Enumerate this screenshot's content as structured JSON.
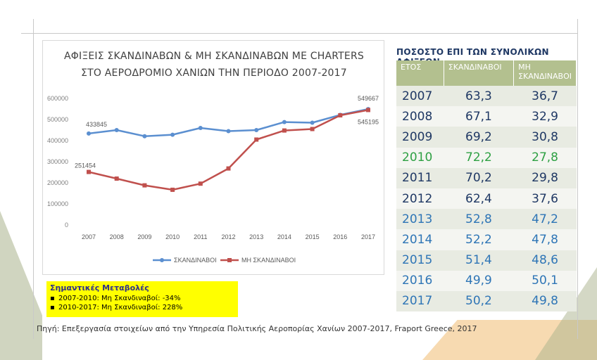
{
  "chart_data": {
    "type": "line",
    "title_line1": "ΑΦΙΞΕΙΣ ΣΚΑΝΔΙΝΑΒΩΝ & ΜΗ ΣΚΑΝΔΙΝΑΒΩΝ ΜΕ CHARTERS",
    "title_line2": "ΣΤΟ ΑΕΡΟΔΡΟΜΙΟ ΧΑΝΙΩΝ ΤΗΝ ΠΕΡΙΟΔΟ 2007-2017",
    "x": [
      "2007",
      "2008",
      "2009",
      "2010",
      "2011",
      "2012",
      "2013",
      "2014",
      "2015",
      "2016",
      "2017"
    ],
    "ylim": [
      0,
      600000
    ],
    "yticks": [
      "0",
      "100000",
      "200000",
      "300000",
      "400000",
      "500000",
      "600000"
    ],
    "series": [
      {
        "name": "ΣΚΑΝΔΙΝΑΒΟΙ",
        "color": "#5b8fd0",
        "values": [
          433845,
          450000,
          421000,
          428000,
          460000,
          445000,
          450000,
          488000,
          485000,
          522000,
          549667
        ]
      },
      {
        "name": "ΜΗ ΣΚΑΝΔΙΝΑΒΟΙ",
        "color": "#c0504d",
        "values": [
          251454,
          220000,
          188000,
          167000,
          196000,
          268000,
          405000,
          448000,
          455000,
          520000,
          545195
        ]
      }
    ],
    "data_labels": [
      {
        "text": "433845",
        "series": 0,
        "index": 0
      },
      {
        "text": "549667",
        "series": 0,
        "index": 10
      },
      {
        "text": "251454",
        "series": 1,
        "index": 0
      },
      {
        "text": "545195",
        "series": 1,
        "index": 10
      }
    ],
    "legend_position": "bottom",
    "grid": false
  },
  "table": {
    "title": "ΠΟΣΟΣΤΟ ΕΠΙ ΤΩΝ ΣΥΝΟΛΙΚΩΝ ΑΦΙΞΕΩΝ",
    "headers": [
      "ΕΤΟΣ",
      "ΣΚΑΝΔΙΝΑΒΟΙ",
      "ΜΗ ΣΚΑΝΔΙΝΑΒΟΙ"
    ],
    "rows": [
      {
        "year": "2007",
        "sk": "63,3",
        "non": "36,7",
        "color": "#1f3864"
      },
      {
        "year": "2008",
        "sk": "67,1",
        "non": "32,9",
        "color": "#1f3864"
      },
      {
        "year": "2009",
        "sk": "69,2",
        "non": "30,8",
        "color": "#1f3864"
      },
      {
        "year": "2010",
        "sk": "72,2",
        "non": "27,8",
        "color": "#2ea043"
      },
      {
        "year": "2011",
        "sk": "70,2",
        "non": "29,8",
        "color": "#1f3864"
      },
      {
        "year": "2012",
        "sk": "62,4",
        "non": "37,6",
        "color": "#1f3864"
      },
      {
        "year": "2013",
        "sk": "52,8",
        "non": "47,2",
        "color": "#2e75b6"
      },
      {
        "year": "2014",
        "sk": "52,2",
        "non": "47,8",
        "color": "#2e75b6"
      },
      {
        "year": "2015",
        "sk": "51,4",
        "non": "48,6",
        "color": "#2e75b6"
      },
      {
        "year": "2016",
        "sk": "49,9",
        "non": "50,1",
        "color": "#2e75b6"
      },
      {
        "year": "2017",
        "sk": "50,2",
        "non": "49,8",
        "color": "#2e75b6"
      }
    ]
  },
  "note": {
    "title": "Σημαντικές Μεταβολές",
    "items": [
      "2007-2010: Μη Σκανδιναβοί: -34%",
      "2010-2017: Μη Σκανδιναβοί: 228%"
    ]
  },
  "source": "Πηγή: Επεξεργασία στοιχείων από την Υπηρεσία Πολιτικής Αεροπορίας Χανίων 2007-2017, Fraport Greece, 2017"
}
